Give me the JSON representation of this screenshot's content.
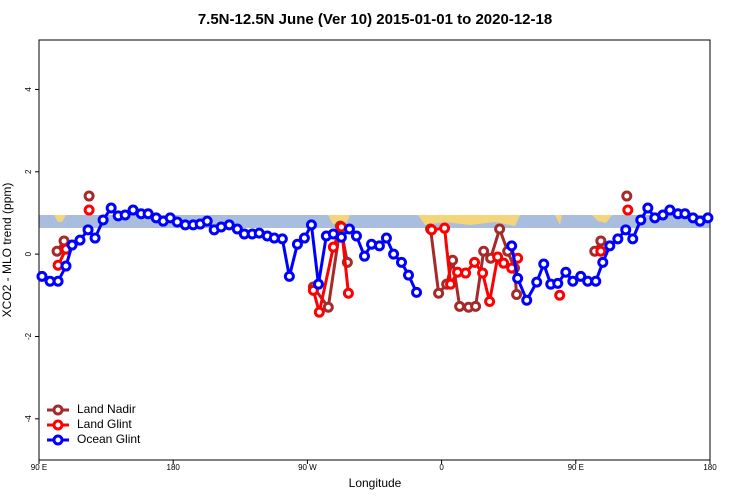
{
  "chart_data": {
    "type": "line",
    "title": "7.5N-12.5N June (Ver 10)   2015-01-01 to 2020-12-18",
    "x_label": "Longitude",
    "y_label": "XCO2 - MLO trend (ppm)",
    "xlim": [
      90,
      540
    ],
    "xticks": [
      {
        "value": 90,
        "label": "90 E"
      },
      {
        "value": 180,
        "label": "180"
      },
      {
        "value": 270,
        "label": "90 W"
      },
      {
        "value": 360,
        "label": "0"
      },
      {
        "value": 450,
        "label": "90 E"
      },
      {
        "value": 540,
        "label": "180"
      }
    ],
    "ylim": [
      -5,
      5.2
    ],
    "yticks": [
      -4,
      -2,
      0,
      2,
      4
    ],
    "legend": "bottomleft",
    "series": [
      {
        "name": "Land Nadir",
        "color": "#a52a2a",
        "x": [
          102.1,
          106.8,
          null,
          123.6,
          null,
          274.0,
          284.0,
          292.1,
          296.8,
          null,
          352.6,
          358.0,
          363.4,
          367.4,
          372.1,
          378.1,
          382.8,
          388.2,
          392.9,
          398.9,
          404.3,
          408.9,
          410.3,
          null,
          462.7,
          466.8,
          null,
          484.2
        ],
        "values": [
          0.07,
          0.32,
          null,
          1.41,
          null,
          -0.8,
          -1.29,
          0.68,
          -0.2,
          null,
          0.61,
          -0.95,
          -0.73,
          -0.15,
          -1.27,
          -1.29,
          -1.27,
          0.07,
          -0.1,
          0.61,
          0.07,
          -0.34,
          -0.98,
          null,
          0.07,
          0.32,
          null,
          1.41
        ]
      },
      {
        "name": "Land Glint",
        "color": "#ff0000",
        "x": [
          102.8,
          108.1,
          null,
          123.6,
          null,
          274.0,
          278.0,
          287.4,
          292.8,
          297.5,
          null,
          353.3,
          362.0,
          366.0,
          370.7,
          376.1,
          382.1,
          387.5,
          392.2,
          397.6,
          401.6,
          407.0,
          411.0,
          null,
          439.2,
          null,
          466.8,
          null,
          484.9
        ],
        "values": [
          -0.27,
          0.12,
          null,
          1.07,
          null,
          -0.88,
          -1.41,
          0.17,
          0.66,
          -0.95,
          null,
          0.59,
          0.63,
          -0.73,
          -0.44,
          -0.46,
          -0.2,
          -0.46,
          -1.15,
          -0.07,
          -0.22,
          -0.34,
          -0.1,
          null,
          -1.0,
          null,
          0.07,
          null,
          1.07
        ]
      },
      {
        "name": "Ocean Glint",
        "color": "#0000ff",
        "x": [
          92.0,
          97.4,
          102.8,
          108.1,
          112.2,
          117.5,
          122.9,
          127.6,
          133.0,
          138.4,
          143.1,
          147.8,
          153.1,
          158.5,
          163.2,
          168.6,
          173.3,
          178.0,
          182.7,
          188.1,
          193.4,
          198.1,
          202.8,
          207.5,
          212.2,
          217.6,
          223.0,
          227.7,
          233.0,
          237.7,
          243.1,
          247.8,
          253.2,
          257.9,
          263.3,
          268.0,
          272.7,
          277.4,
          282.7,
          287.4,
          292.8,
          298.2,
          302.9,
          308.3,
          313.0,
          318.3,
          323.0,
          327.8,
          333.1,
          337.8,
          343.2,
          null,
          407.0,
          411.0,
          417.1,
          423.8,
          428.5,
          433.2,
          437.9,
          443.3,
          448.0,
          453.3,
          458.0,
          463.4,
          468.1,
          472.8,
          478.2,
          483.5,
          488.2,
          493.6,
          498.3,
          503.0,
          508.4,
          513.1,
          518.5,
          523.2,
          528.6,
          533.3,
          538.6
        ],
        "values": [
          -0.54,
          -0.66,
          -0.66,
          -0.29,
          0.22,
          0.34,
          0.59,
          0.39,
          0.83,
          1.12,
          0.93,
          0.95,
          1.07,
          0.98,
          0.98,
          0.88,
          0.8,
          0.88,
          0.78,
          0.71,
          0.71,
          0.73,
          0.8,
          0.59,
          0.66,
          0.71,
          0.61,
          0.49,
          0.49,
          0.51,
          0.44,
          0.39,
          0.37,
          -0.54,
          0.24,
          0.39,
          0.71,
          -0.73,
          0.44,
          0.49,
          0.41,
          0.61,
          0.44,
          -0.05,
          0.24,
          0.2,
          0.39,
          0,
          -0.2,
          -0.51,
          -0.93,
          null,
          0.2,
          -0.59,
          -1.12,
          -0.68,
          -0.24,
          -0.73,
          -0.71,
          -0.44,
          -0.66,
          -0.54,
          -0.66,
          -0.66,
          -0.2,
          0.2,
          0.37,
          0.59,
          0.37,
          0.83,
          1.12,
          0.88,
          0.95,
          1.07,
          0.98,
          0.98,
          0.88,
          0.8,
          0.88
        ]
      }
    ]
  }
}
